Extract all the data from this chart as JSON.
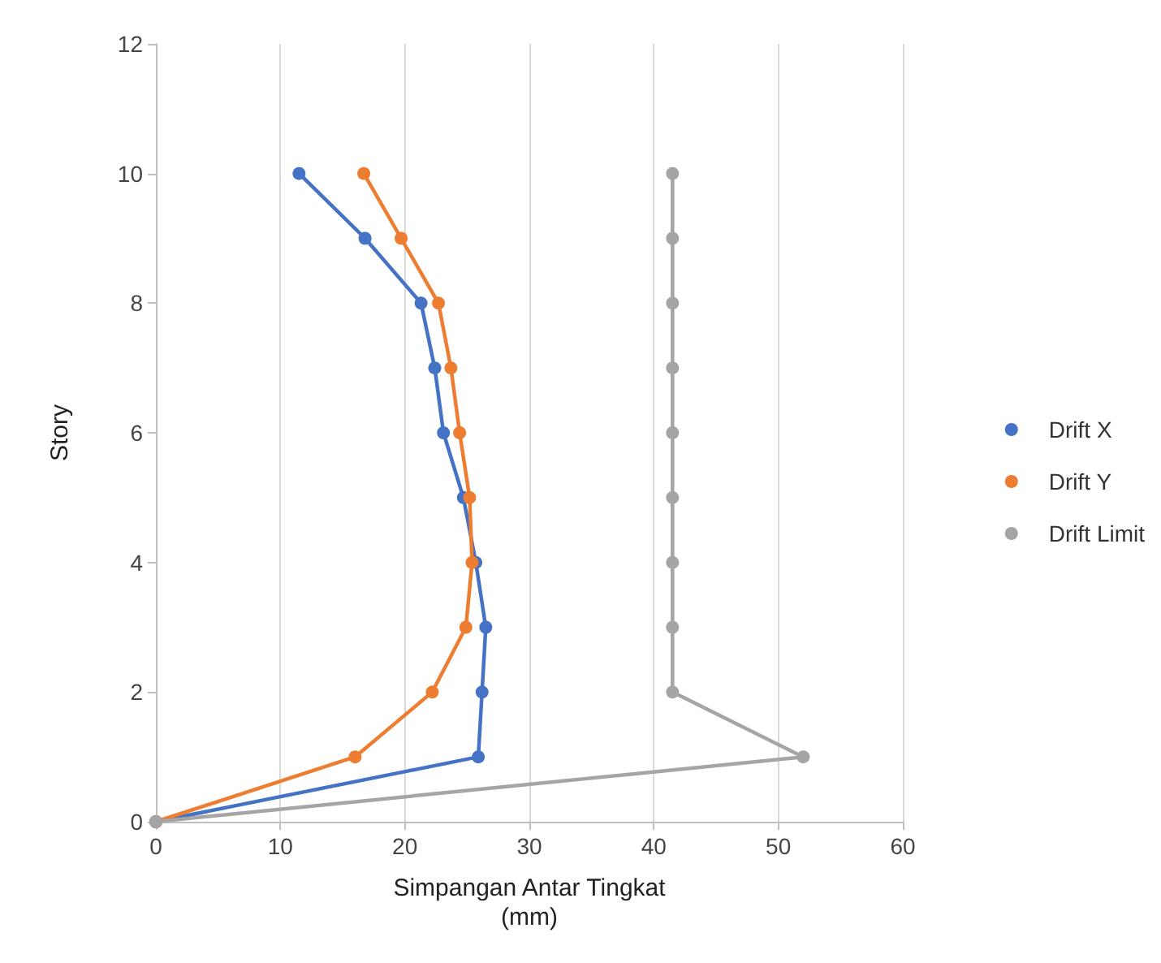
{
  "chart_data": {
    "type": "line",
    "xlabel": "Simpangan Antar Tingkat\n(mm)",
    "ylabel": "Story",
    "xlim": [
      0,
      60
    ],
    "xticks": [
      0,
      10,
      20,
      30,
      40,
      50,
      60
    ],
    "ylim": [
      0,
      12
    ],
    "yticks": [
      0,
      2,
      4,
      6,
      8,
      10,
      12
    ],
    "grid": "x",
    "legend": "right",
    "marker": "circle",
    "line_style": "solid",
    "series": [
      {
        "name": "Drift X",
        "color": "#4472c4",
        "x": [
          0,
          25.9,
          26.2,
          26.5,
          25.7,
          24.7,
          23.1,
          22.4,
          21.3,
          16.8,
          11.5
        ],
        "values": [
          0,
          1,
          2,
          3,
          4,
          5,
          6,
          7,
          8,
          9,
          10
        ]
      },
      {
        "name": "Drift Y",
        "color": "#ed7d31",
        "x": [
          0,
          16.0,
          22.2,
          24.9,
          25.4,
          25.2,
          24.4,
          23.7,
          22.7,
          19.7,
          16.7
        ],
        "values": [
          0,
          1,
          2,
          3,
          4,
          5,
          6,
          7,
          8,
          9,
          10
        ]
      },
      {
        "name": "Drift Limit",
        "color": "#a5a5a5",
        "x": [
          0,
          52,
          41.5,
          41.5,
          41.5,
          41.5,
          41.5,
          41.5,
          41.5,
          41.5,
          41.5
        ],
        "values": [
          0,
          1,
          2,
          3,
          4,
          5,
          6,
          7,
          8,
          9,
          10
        ]
      }
    ]
  }
}
